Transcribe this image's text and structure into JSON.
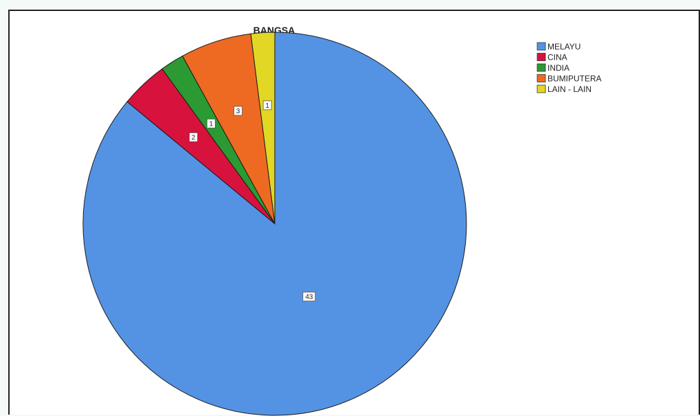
{
  "chart_data": {
    "type": "pie",
    "title": "BANGSA",
    "categories": [
      "MELAYU",
      "CINA",
      "INDIA",
      "BUMIPUTERA",
      "LAIN - LAIN"
    ],
    "values": [
      43,
      2,
      1,
      3,
      1
    ],
    "colors": [
      "#5493e3",
      "#d7123c",
      "#2c9a32",
      "#ee6a22",
      "#e1d724"
    ],
    "start_angle": "12 o'clock",
    "direction": "clockwise",
    "legend_position": "top-right",
    "data_labels": true
  }
}
